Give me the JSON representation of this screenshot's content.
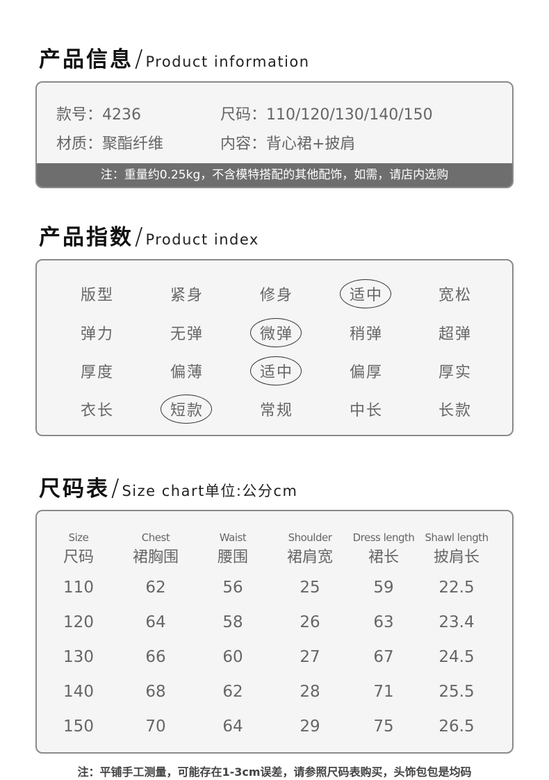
{
  "product_info": {
    "title_zh": "产品信息",
    "title_en": "Product information",
    "style_no": "款号：4236",
    "sizes": "尺码：110/120/130/140/150",
    "material": "材质：聚酯纤维",
    "contents": "内容：背心裙+披肩",
    "note": "注：重量约0.25kg，不含模特搭配的其他配饰，如需，请店内选购"
  },
  "product_index": {
    "title_zh": "产品指数",
    "title_en": "Product index",
    "rows": [
      {
        "label": "版型",
        "options": [
          "紧身",
          "修身",
          "适中",
          "宽松"
        ],
        "selected": 2
      },
      {
        "label": "弹力",
        "options": [
          "无弹",
          "微弹",
          "稍弹",
          "超弹"
        ],
        "selected": 1
      },
      {
        "label": "厚度",
        "options": [
          "偏薄",
          "适中",
          "偏厚",
          "厚实"
        ],
        "selected": 1
      },
      {
        "label": "衣长",
        "options": [
          "短款",
          "常规",
          "中长",
          "长款"
        ],
        "selected": 0
      }
    ]
  },
  "size_chart": {
    "title_zh": "尺码表",
    "title_en": "Size chart单位:公分cm",
    "headers": [
      {
        "en": "Size",
        "zh": "尺码"
      },
      {
        "en": "Chest",
        "zh": "裙胸围"
      },
      {
        "en": "Waist",
        "zh": "腰围"
      },
      {
        "en": "Shoulder",
        "zh": "裙肩宽"
      },
      {
        "en": "Dress length",
        "zh": "裙长"
      },
      {
        "en": "Shawl length",
        "zh": "披肩长"
      }
    ],
    "rows": [
      [
        "110",
        "62",
        "56",
        "25",
        "59",
        "22.5"
      ],
      [
        "120",
        "64",
        "58",
        "26",
        "63",
        "23.4"
      ],
      [
        "130",
        "66",
        "60",
        "27",
        "67",
        "24.5"
      ],
      [
        "140",
        "68",
        "62",
        "28",
        "71",
        "25.5"
      ],
      [
        "150",
        "70",
        "64",
        "29",
        "75",
        "26.5"
      ]
    ],
    "note": "注：平铺手工测量，可能存在1-3cm误差，请参照尺码表购买，头饰包包是均码"
  }
}
